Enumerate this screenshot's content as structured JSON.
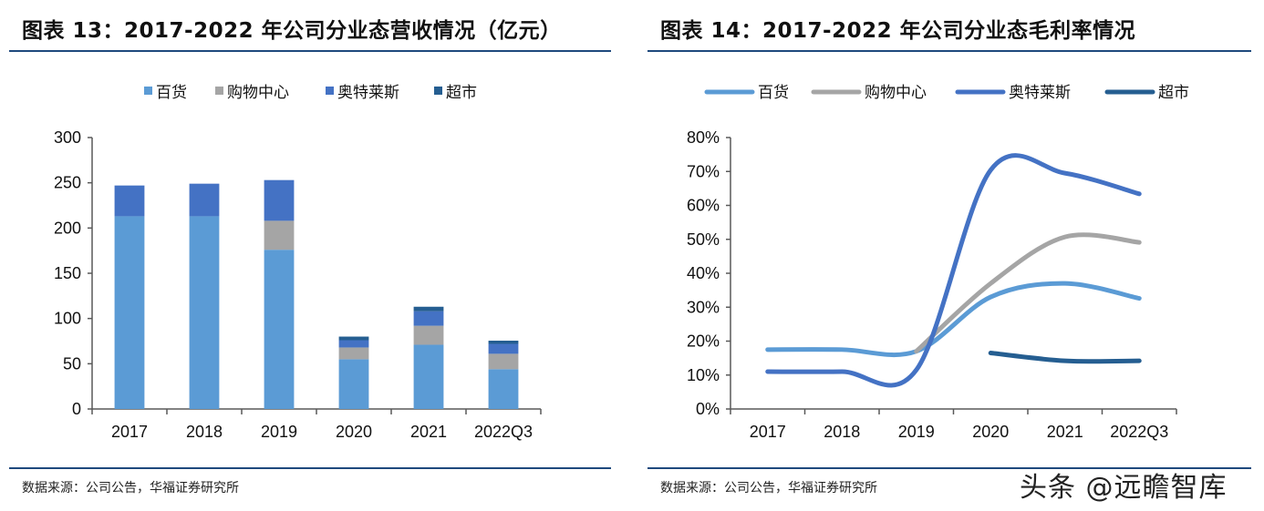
{
  "left": {
    "title": "图表 13：2017-2022 年公司分业态营收情况（亿元）",
    "source": "数据来源：公司公告，华福证券研究所"
  },
  "right": {
    "title": "图表 14：2017-2022 年公司分业态毛利率情况",
    "source": "数据来源：公司公告，华福证券研究所"
  },
  "watermark": "头条 @远瞻智库",
  "chart_data": [
    {
      "type": "bar",
      "stacked": true,
      "title": "图表 13：2017-2022 年公司分业态营收情况（亿元）",
      "categories": [
        "2017",
        "2018",
        "2019",
        "2020",
        "2021",
        "2022Q3"
      ],
      "ylim": [
        0,
        300
      ],
      "yticks": [
        "0",
        "50",
        "100",
        "150",
        "200",
        "250",
        "300"
      ],
      "grid": false,
      "legend": "top",
      "series": [
        {
          "name": "百货",
          "color": "#5b9bd5",
          "values": [
            213,
            213,
            176,
            55,
            71,
            44
          ]
        },
        {
          "name": "购物中心",
          "color": "#a5a5a5",
          "values": [
            0,
            0,
            32,
            13,
            21,
            17
          ]
        },
        {
          "name": "奥特莱斯",
          "color": "#4472c4",
          "values": [
            34,
            36,
            45,
            8,
            16,
            11
          ]
        },
        {
          "name": "超市",
          "color": "#255e91",
          "values": [
            0,
            0,
            0,
            4,
            5,
            3.5
          ]
        }
      ]
    },
    {
      "type": "line",
      "smooth": true,
      "title": "图表 14：2017-2022 年公司分业态毛利率情况",
      "categories": [
        "2017",
        "2018",
        "2019",
        "2020",
        "2021",
        "2022Q3"
      ],
      "ylim": [
        0,
        80
      ],
      "yticks": [
        "0%",
        "10%",
        "20%",
        "30%",
        "40%",
        "50%",
        "60%",
        "70%",
        "80%"
      ],
      "grid": false,
      "legend": "top",
      "series": [
        {
          "name": "百货",
          "color": "#5b9bd5",
          "values": [
            17.5,
            17.5,
            17,
            33,
            37,
            32.6
          ]
        },
        {
          "name": "购物中心",
          "color": "#a5a5a5",
          "values": [
            null,
            null,
            17,
            37,
            50.7,
            49.1
          ]
        },
        {
          "name": "奥特莱斯",
          "color": "#4472c4",
          "values": [
            11,
            11,
            11.5,
            70.4,
            69.5,
            63.4
          ]
        },
        {
          "name": "超市",
          "color": "#255e91",
          "values": [
            null,
            null,
            null,
            16.5,
            14.2,
            14.2
          ]
        }
      ]
    }
  ]
}
